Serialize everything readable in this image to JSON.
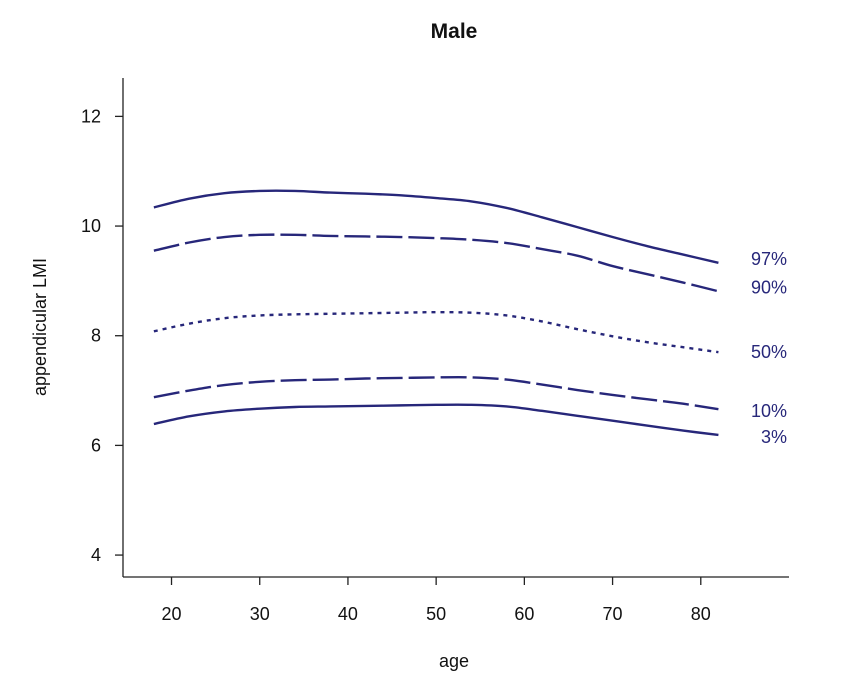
{
  "chart_data": {
    "type": "line",
    "title": "Male",
    "xlabel": "age",
    "ylabel": "appendicular LMI",
    "xlim": [
      14.5,
      90
    ],
    "ylim": [
      3.6,
      12.7
    ],
    "xticks": [
      "20",
      "30",
      "40",
      "50",
      "60",
      "70",
      "80"
    ],
    "yticks": [
      "4",
      "6",
      "8",
      "10",
      "12"
    ],
    "grid": false,
    "legend": "none",
    "line_color": "#27277a",
    "x": [
      18,
      22,
      26,
      30,
      34,
      38,
      42,
      46,
      50,
      54,
      58,
      62,
      66,
      70,
      74,
      78,
      82
    ],
    "series": [
      {
        "name": "97%",
        "style": "solid",
        "values": [
          10.34,
          10.5,
          10.6,
          10.64,
          10.64,
          10.61,
          10.59,
          10.56,
          10.51,
          10.45,
          10.33,
          10.16,
          9.98,
          9.8,
          9.63,
          9.48,
          9.33
        ]
      },
      {
        "name": "90%",
        "style": "dashed",
        "values": [
          9.55,
          9.7,
          9.8,
          9.84,
          9.84,
          9.82,
          9.81,
          9.8,
          9.78,
          9.75,
          9.69,
          9.58,
          9.46,
          9.27,
          9.12,
          8.97,
          8.81
        ]
      },
      {
        "name": "50%",
        "style": "dotted",
        "values": [
          8.08,
          8.22,
          8.32,
          8.37,
          8.39,
          8.4,
          8.41,
          8.42,
          8.43,
          8.42,
          8.37,
          8.26,
          8.12,
          7.99,
          7.88,
          7.79,
          7.7
        ]
      },
      {
        "name": "10%",
        "style": "dashed",
        "values": [
          6.88,
          7.0,
          7.1,
          7.16,
          7.19,
          7.2,
          7.22,
          7.23,
          7.24,
          7.24,
          7.2,
          7.11,
          7.01,
          6.92,
          6.84,
          6.76,
          6.66
        ]
      },
      {
        "name": "3%",
        "style": "solid",
        "values": [
          6.39,
          6.53,
          6.62,
          6.67,
          6.7,
          6.71,
          6.72,
          6.73,
          6.74,
          6.74,
          6.71,
          6.63,
          6.54,
          6.45,
          6.36,
          6.27,
          6.19
        ]
      }
    ]
  }
}
